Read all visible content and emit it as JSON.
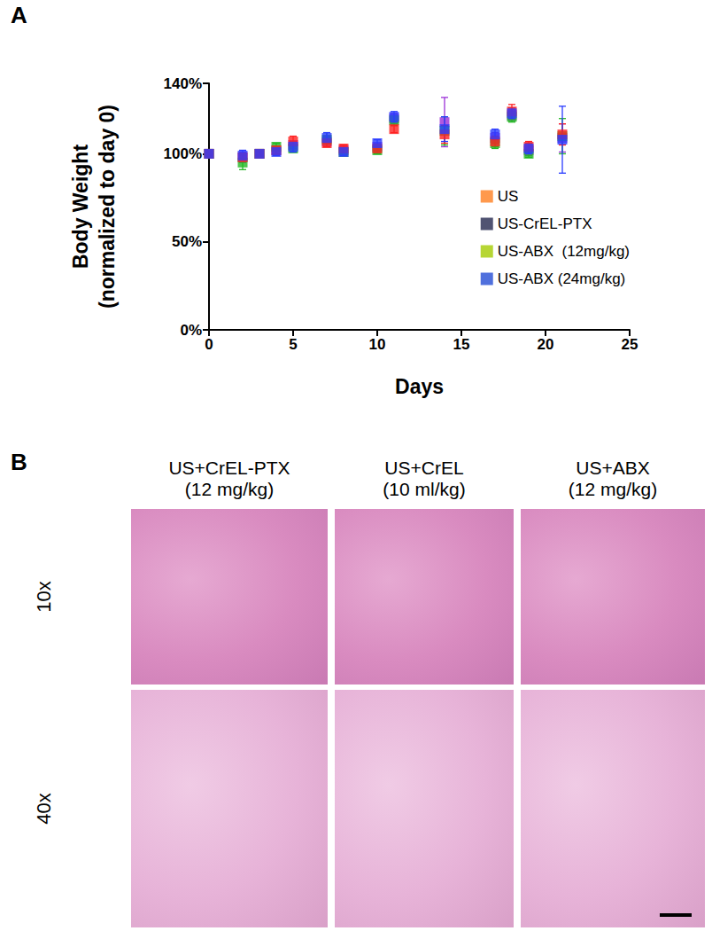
{
  "chart_data": {
    "type": "scatter",
    "x_label": "Days",
    "y_label": "Body Weight\n(normalized to day 0)",
    "x": [
      0,
      2,
      3,
      4,
      5,
      7,
      8,
      10,
      11,
      14,
      17,
      18,
      19,
      21
    ],
    "xlim": [
      0,
      25
    ],
    "xticks": [
      0,
      5,
      10,
      15,
      20,
      25
    ],
    "ylim": [
      0,
      140
    ],
    "yticks": [
      {
        "value": 0,
        "label": "0%"
      },
      {
        "value": 50,
        "label": "50%"
      },
      {
        "value": 100,
        "label": "100%"
      },
      {
        "value": 140,
        "label": "140%"
      }
    ],
    "marker": "square",
    "legend": "right",
    "grid": false,
    "series": [
      {
        "name": "US",
        "color": "#2a3cff",
        "values": [
          100,
          99,
          100,
          101,
          104,
          109,
          101,
          106,
          121,
          114,
          111,
          123,
          103,
          108
        ],
        "errors": [
          1,
          3,
          1,
          2,
          3,
          3,
          2,
          2,
          3,
          7,
          3,
          3,
          3,
          19
        ]
      },
      {
        "name": "US-CrEL-PTX",
        "color": "#ff2020",
        "values": [
          100,
          98,
          100,
          102,
          107,
          106,
          103,
          103,
          114,
          111,
          107,
          124,
          104,
          111
        ],
        "errors": [
          1,
          2,
          1,
          2,
          3,
          2,
          2,
          2,
          2,
          5,
          3,
          4,
          3,
          6
        ]
      },
      {
        "name": "US-ABX  (12mg/kg)",
        "color": "#22b822",
        "values": [
          100,
          95,
          100,
          104,
          103,
          108,
          101,
          102,
          119,
          113,
          106,
          121,
          100,
          110
        ],
        "errors": [
          1,
          4,
          1,
          2,
          2,
          4,
          2,
          2,
          3,
          8,
          3,
          3,
          2,
          10
        ]
      },
      {
        "name": "US-ABX (24mg/kg)",
        "color": "#9b30d8",
        "values": [
          100,
          98,
          100,
          102,
          105,
          107,
          102,
          104,
          120,
          118,
          109,
          122,
          102,
          109
        ],
        "errors": [
          1,
          3,
          1,
          2,
          2,
          3,
          2,
          2,
          3,
          14,
          3,
          3,
          3,
          8
        ]
      }
    ]
  },
  "panel_labels": [
    "A",
    "B"
  ],
  "panel_b": {
    "columns": [
      {
        "title": "US+CrEL-PTX",
        "dose": "(12 mg/kg)"
      },
      {
        "title": "US+CrEL",
        "dose": "(10 ml/kg)"
      },
      {
        "title": "US+ABX",
        "dose": "(12 mg/kg)"
      }
    ],
    "rows": [
      "10x",
      "40x"
    ]
  }
}
